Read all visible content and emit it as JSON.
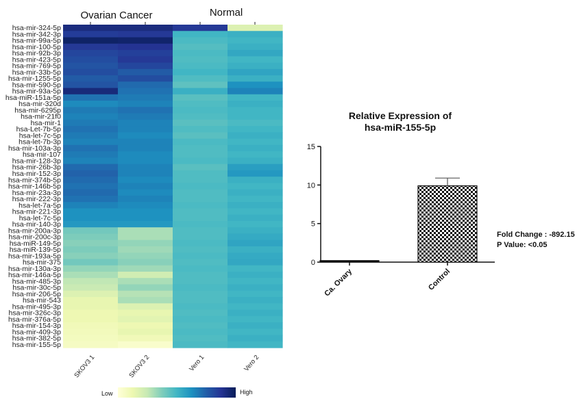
{
  "chart_data": [
    {
      "type": "heatmap",
      "groups": [
        {
          "label": "Ovarian Cancer",
          "columns": [
            "SKOV3 1",
            "SKOV3 2"
          ]
        },
        {
          "label": "Normal",
          "columns": [
            "Vero 1",
            "Vero 2"
          ]
        }
      ],
      "columns": [
        "SKOV3 1",
        "SKOV3 2",
        "Vero 1",
        "Vero 2"
      ],
      "rows": [
        "hsa-mir-324-5p",
        "hsa-mir-342-3p",
        "hsa-mir-99a-5p",
        "hsa-mir-100-5p",
        "hsa-mir-92b-3p",
        "hsa-mir-423-5p",
        "hsa-mir-769-5p",
        "hsa-mir-33b-5p",
        "hsa-mir-1255-5p",
        "hsa-mir-590-5p",
        "hsa-mir-93a-5p",
        "hsa-miR-151a-5p",
        "hsa-mir-320d",
        "hsa-mir-6295p",
        "hsa-mir-21f0",
        "hsa-mir-1",
        "hsa-Let-7b-5p",
        "hsa-let-7c-5p",
        "hsa-let-7b-3p",
        "hsa-mir-103a-3p",
        "hsa-mir-107",
        "hsa-mir-128-3p",
        "hsa-mir-26b-3p",
        "hsa-mir-152-3p",
        "hsa-mir-374b-5p",
        "hsa-mir-146b-5p",
        "hsa-mir-23a-3p",
        "hsa-mir-222-3p",
        "hsa-let-7a-5p",
        "hsa-mir-221-3p",
        "hsa-let-7c-5p",
        "hsa-mir-140-3p",
        "hsa-mir-200a-3p",
        "hsa-mir-200c-3p",
        "hsa-miR-149-5p",
        "hsa-miR-139-5p",
        "hsa-mir-193a-5p",
        "hsa-mir-375",
        "hsa-mir-130a-3p",
        "hsa-mir-146a-5p",
        "hsa-mir-485-3p",
        "hsa-mir-30c-5p",
        "hsa-mir-206-5p",
        "hsa-mir-543",
        "hsa-mir-495-3p",
        "hsa-mir-326c-3p",
        "hsa-mir-376a-5p",
        "hsa-mir-154-3p",
        "hsa-mir-409-3p",
        "hsa-mir-382-5p",
        "hsa-mir-155-5p"
      ],
      "values": [
        [
          0.92,
          0.92,
          0.86,
          0.18
        ],
        [
          0.85,
          0.86,
          0.5,
          0.52
        ],
        [
          0.97,
          0.96,
          0.48,
          0.5
        ],
        [
          0.86,
          0.88,
          0.46,
          0.52
        ],
        [
          0.82,
          0.84,
          0.48,
          0.55
        ],
        [
          0.8,
          0.86,
          0.47,
          0.5
        ],
        [
          0.78,
          0.82,
          0.48,
          0.52
        ],
        [
          0.8,
          0.76,
          0.5,
          0.56
        ],
        [
          0.76,
          0.8,
          0.47,
          0.52
        ],
        [
          0.78,
          0.72,
          0.44,
          0.62
        ],
        [
          0.93,
          0.7,
          0.52,
          0.66
        ],
        [
          0.7,
          0.68,
          0.45,
          0.5
        ],
        [
          0.64,
          0.66,
          0.47,
          0.52
        ],
        [
          0.68,
          0.7,
          0.48,
          0.5
        ],
        [
          0.66,
          0.68,
          0.47,
          0.5
        ],
        [
          0.68,
          0.66,
          0.45,
          0.48
        ],
        [
          0.7,
          0.66,
          0.47,
          0.5
        ],
        [
          0.68,
          0.64,
          0.45,
          0.52
        ],
        [
          0.66,
          0.66,
          0.48,
          0.5
        ],
        [
          0.7,
          0.66,
          0.47,
          0.52
        ],
        [
          0.68,
          0.64,
          0.47,
          0.5
        ],
        [
          0.66,
          0.64,
          0.48,
          0.52
        ],
        [
          0.72,
          0.66,
          0.45,
          0.58
        ],
        [
          0.74,
          0.66,
          0.47,
          0.6
        ],
        [
          0.72,
          0.64,
          0.47,
          0.52
        ],
        [
          0.7,
          0.66,
          0.48,
          0.5
        ],
        [
          0.72,
          0.64,
          0.47,
          0.52
        ],
        [
          0.7,
          0.66,
          0.47,
          0.5
        ],
        [
          0.66,
          0.64,
          0.48,
          0.52
        ],
        [
          0.62,
          0.62,
          0.47,
          0.5
        ],
        [
          0.62,
          0.62,
          0.47,
          0.52
        ],
        [
          0.6,
          0.6,
          0.48,
          0.5
        ],
        [
          0.4,
          0.3,
          0.47,
          0.52
        ],
        [
          0.38,
          0.3,
          0.47,
          0.54
        ],
        [
          0.36,
          0.34,
          0.48,
          0.56
        ],
        [
          0.38,
          0.32,
          0.47,
          0.52
        ],
        [
          0.36,
          0.34,
          0.48,
          0.54
        ],
        [
          0.4,
          0.36,
          0.47,
          0.55
        ],
        [
          0.34,
          0.32,
          0.48,
          0.5
        ],
        [
          0.3,
          0.22,
          0.47,
          0.52
        ],
        [
          0.26,
          0.3,
          0.47,
          0.5
        ],
        [
          0.24,
          0.34,
          0.48,
          0.52
        ],
        [
          0.18,
          0.28,
          0.47,
          0.5
        ],
        [
          0.14,
          0.3,
          0.47,
          0.52
        ],
        [
          0.14,
          0.18,
          0.48,
          0.5
        ],
        [
          0.12,
          0.14,
          0.47,
          0.52
        ],
        [
          0.12,
          0.16,
          0.48,
          0.5
        ],
        [
          0.1,
          0.12,
          0.47,
          0.52
        ],
        [
          0.09,
          0.14,
          0.48,
          0.5
        ],
        [
          0.08,
          0.1,
          0.47,
          0.52
        ],
        [
          0.07,
          0.04,
          0.48,
          0.5
        ]
      ],
      "colorbar": {
        "low_label": "Low",
        "high_label": "High",
        "colors": [
          "#ffffd9",
          "#edf8b1",
          "#c7e9b4",
          "#7fcdbb",
          "#41b6c4",
          "#1d91c0",
          "#225ea8",
          "#253494",
          "#081d58"
        ]
      }
    },
    {
      "type": "bar",
      "title_line1": "Relative Expression of",
      "title_line2": "hsa-miR-155-5p",
      "categories": [
        "Ca. Ovary",
        "Control"
      ],
      "values": [
        0.2,
        9.9
      ],
      "error_upper": [
        0,
        10.9
      ],
      "ylim": [
        0,
        15
      ],
      "yticks": [
        "0",
        "5",
        "10",
        "15"
      ],
      "annotation_line1": "Fold Change : -892.15",
      "annotation_line2": "P Value: <0.05"
    }
  ]
}
